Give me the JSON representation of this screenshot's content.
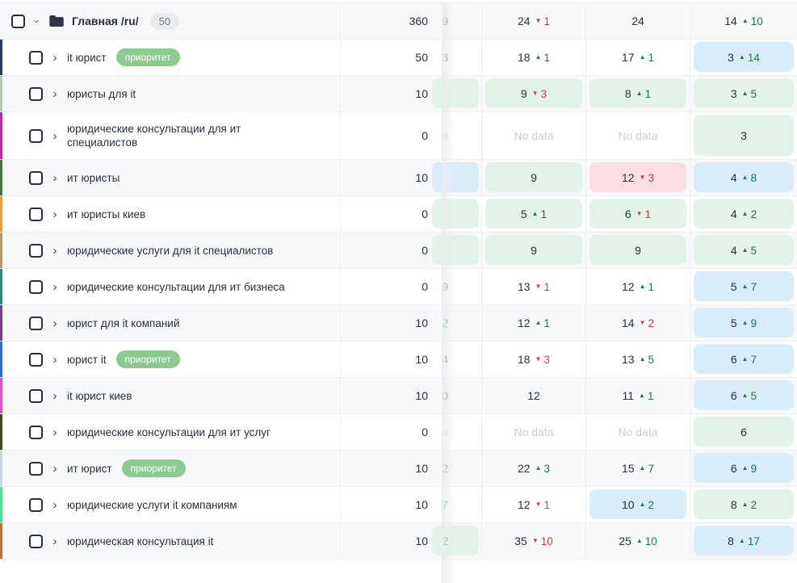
{
  "labels": {
    "no_data": "No data",
    "priority_badge": "приоритет"
  },
  "icons": {
    "up_arrow": "▲",
    "down_arrow": "▼",
    "chevron_right": "›",
    "folder": "folder-icon"
  },
  "colors": {
    "cell_bg_green": "#e3f3e7",
    "cell_bg_blue": "#d9edf9",
    "cell_bg_red": "#fbdde2",
    "change_up": "#187a4c",
    "change_down": "#d03a3f",
    "priority_badge_bg": "#8ccb90",
    "stripe_bg": "#f7f8fa",
    "text": "#27303f",
    "no_data": "#c7cdd8"
  },
  "rows": [
    {
      "type": "folder",
      "label": "Главная /ru/",
      "count": "50",
      "marker": null,
      "badge": null,
      "volume": "360",
      "hidden_col": {
        "text": "9",
        "color": "green",
        "bg": null
      },
      "cols": [
        {
          "value": "24",
          "change": "1",
          "dir": "down",
          "bg": null
        },
        {
          "value": "24",
          "change": null,
          "dir": null,
          "bg": null
        },
        {
          "value": "14",
          "change": "10",
          "dir": "up",
          "bg": null
        }
      ]
    },
    {
      "type": "keyword",
      "label": "it юрист",
      "badge": "приоритет",
      "marker": "#2b3a5c",
      "volume": "50",
      "hidden_col": {
        "text": "3",
        "color": "green",
        "bg": null
      },
      "cols": [
        {
          "value": "18",
          "change": "1",
          "dir": "up",
          "bg": null
        },
        {
          "value": "17",
          "change": "1",
          "dir": "up",
          "bg": null
        },
        {
          "value": "3",
          "change": "14",
          "dir": "up",
          "bg": "blue"
        }
      ]
    },
    {
      "type": "keyword",
      "label": "юристы для it",
      "badge": null,
      "marker": "#b7c9b6",
      "volume": "10",
      "hidden_col": {
        "text": "",
        "color": null,
        "bg": "green"
      },
      "cols": [
        {
          "value": "9",
          "change": "3",
          "dir": "down",
          "bg": "green"
        },
        {
          "value": "8",
          "change": "1",
          "dir": "up",
          "bg": "green"
        },
        {
          "value": "3",
          "change": "5",
          "dir": "up",
          "bg": "green"
        }
      ]
    },
    {
      "type": "keyword",
      "label": "юридические консультации для ит специалистов",
      "badge": null,
      "marker": "#c42ba1",
      "volume": "0",
      "hidden_col": {
        "text": "a",
        "color": "muted",
        "bg": null
      },
      "cols": [
        {
          "no_data": true,
          "bg": null
        },
        {
          "no_data": true,
          "bg": null
        },
        {
          "value": "3",
          "change": null,
          "dir": null,
          "bg": "green"
        }
      ]
    },
    {
      "type": "keyword",
      "label": "ит юристы",
      "badge": null,
      "marker": "#46743f",
      "volume": "10",
      "hidden_col": {
        "text": "",
        "color": null,
        "bg": "blue"
      },
      "cols": [
        {
          "value": "9",
          "change": null,
          "dir": null,
          "bg": "green"
        },
        {
          "value": "12",
          "change": "3",
          "dir": "down",
          "bg": "red"
        },
        {
          "value": "4",
          "change": "8",
          "dir": "up",
          "bg": "blue"
        }
      ]
    },
    {
      "type": "keyword",
      "label": "ит юристы киев",
      "badge": null,
      "marker": "#ec9a3e",
      "volume": "0",
      "hidden_col": {
        "text": "",
        "color": null,
        "bg": "green"
      },
      "cols": [
        {
          "value": "5",
          "change": "1",
          "dir": "up",
          "bg": "green"
        },
        {
          "value": "6",
          "change": "1",
          "dir": "down",
          "bg": "green"
        },
        {
          "value": "4",
          "change": "2",
          "dir": "up",
          "bg": "green"
        }
      ]
    },
    {
      "type": "keyword",
      "label": "юридические услуги для it специалистов",
      "badge": null,
      "marker": "#b39b6e",
      "volume": "0",
      "hidden_col": {
        "text": "",
        "color": null,
        "bg": "green"
      },
      "cols": [
        {
          "value": "9",
          "change": null,
          "dir": null,
          "bg": "green"
        },
        {
          "value": "9",
          "change": null,
          "dir": null,
          "bg": "green"
        },
        {
          "value": "4",
          "change": "5",
          "dir": "up",
          "bg": "green"
        }
      ]
    },
    {
      "type": "keyword",
      "label": "юридические консультации для ит бизнеса",
      "badge": null,
      "marker": "#2e8a73",
      "volume": "0",
      "hidden_col": {
        "text": "9",
        "color": "green",
        "bg": null
      },
      "cols": [
        {
          "value": "13",
          "change": "1",
          "dir": "down",
          "bg": null
        },
        {
          "value": "12",
          "change": "1",
          "dir": "up",
          "bg": null
        },
        {
          "value": "5",
          "change": "7",
          "dir": "up",
          "bg": "blue"
        }
      ]
    },
    {
      "type": "keyword",
      "label": "юрист для it компаний",
      "badge": null,
      "marker": "#7d3b90",
      "volume": "10",
      "hidden_col": {
        "text": "2",
        "color": "green",
        "bg": null
      },
      "cols": [
        {
          "value": "12",
          "change": "1",
          "dir": "up",
          "bg": null
        },
        {
          "value": "14",
          "change": "2",
          "dir": "down",
          "bg": null
        },
        {
          "value": "5",
          "change": "9",
          "dir": "up",
          "bg": "blue"
        }
      ]
    },
    {
      "type": "keyword",
      "label": "юрист it",
      "badge": "приоритет",
      "marker": "#2e6bd9",
      "volume": "10",
      "hidden_col": {
        "text": "4",
        "color": "red",
        "bg": null
      },
      "cols": [
        {
          "value": "18",
          "change": "3",
          "dir": "down",
          "bg": null
        },
        {
          "value": "13",
          "change": "5",
          "dir": "up",
          "bg": null
        },
        {
          "value": "6",
          "change": "7",
          "dir": "up",
          "bg": "blue"
        }
      ]
    },
    {
      "type": "keyword",
      "label": "it юрист киев",
      "badge": null,
      "marker": "#e14fc9",
      "volume": "10",
      "hidden_col": {
        "text": "0",
        "color": "green",
        "bg": null
      },
      "cols": [
        {
          "value": "12",
          "change": null,
          "dir": null,
          "bg": null
        },
        {
          "value": "11",
          "change": "1",
          "dir": "up",
          "bg": null
        },
        {
          "value": "6",
          "change": "5",
          "dir": "up",
          "bg": "blue"
        }
      ]
    },
    {
      "type": "keyword",
      "label": "юридические консультации для ит услуг",
      "badge": null,
      "marker": "#3d491c",
      "volume": "0",
      "hidden_col": {
        "text": "a",
        "color": "muted",
        "bg": null
      },
      "cols": [
        {
          "no_data": true,
          "bg": null
        },
        {
          "no_data": true,
          "bg": null
        },
        {
          "value": "6",
          "change": null,
          "dir": null,
          "bg": "green"
        }
      ]
    },
    {
      "type": "keyword",
      "label": "ит юрист",
      "badge": "приоритет",
      "marker": "#c9d8de",
      "volume": "10",
      "hidden_col": {
        "text": "2",
        "color": "green",
        "bg": null
      },
      "cols": [
        {
          "value": "22",
          "change": "3",
          "dir": "up",
          "bg": null
        },
        {
          "value": "15",
          "change": "7",
          "dir": "up",
          "bg": null
        },
        {
          "value": "6",
          "change": "9",
          "dir": "up",
          "bg": "blue"
        }
      ]
    },
    {
      "type": "keyword",
      "label": "юридические услуги it компаниям",
      "badge": null,
      "marker": "#45e39b",
      "volume": "10",
      "hidden_col": {
        "text": "7",
        "color": "green",
        "bg": null
      },
      "cols": [
        {
          "value": "12",
          "change": "1",
          "dir": "down",
          "bg": null
        },
        {
          "value": "10",
          "change": "2",
          "dir": "up",
          "bg": "blue"
        },
        {
          "value": "8",
          "change": "2",
          "dir": "up",
          "bg": "green"
        }
      ]
    },
    {
      "type": "keyword",
      "label": "юридическая консультация it",
      "badge": null,
      "marker": "#c07335",
      "volume": "10",
      "hidden_col": {
        "text": "2",
        "color": "green",
        "bg": "green"
      },
      "cols": [
        {
          "value": "35",
          "change": "10",
          "dir": "down",
          "bg": null
        },
        {
          "value": "25",
          "change": "10",
          "dir": "up",
          "bg": null
        },
        {
          "value": "8",
          "change": "17",
          "dir": "up",
          "bg": "blue"
        }
      ]
    }
  ]
}
